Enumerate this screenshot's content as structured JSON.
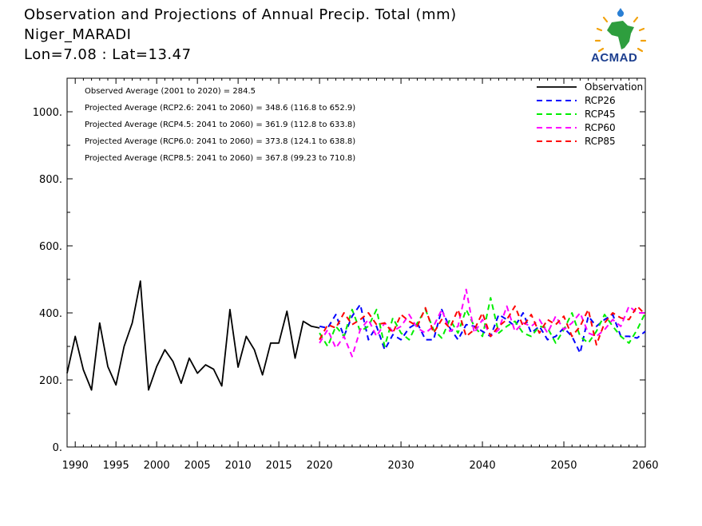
{
  "header": {
    "title_line1": "Observation and Projections of Annual Precip. Total (mm)",
    "title_line2": "Niger_MARADI",
    "title_line3": "Lon=7.08 : Lat=13.47"
  },
  "logo": {
    "text": "ACMAD"
  },
  "colors": {
    "observation": "#000000",
    "rcp26": "#0000ff",
    "rcp45": "#00ee00",
    "rcp60": "#ff00ff",
    "rcp85": "#ff0000"
  },
  "chart_data": {
    "type": "line",
    "xlim": [
      1989,
      2060
    ],
    "ylim": [
      0,
      1100
    ],
    "x_ticks": [
      1990,
      1995,
      2000,
      2005,
      2010,
      2015,
      2020,
      2030,
      2040,
      2050,
      2060
    ],
    "y_ticks": [
      0,
      200,
      400,
      600,
      800,
      1000
    ],
    "y_tick_labels": [
      "0.",
      "200.",
      "400.",
      "600.",
      "800.",
      "1000."
    ],
    "annotations": [
      "Observed Average (2001 to 2020) = 284.5",
      "Projected Average (RCP2.6: 2041 to 2060) = 348.6 (116.8 to 652.9)",
      "Projected Average (RCP4.5: 2041 to 2060) = 361.9 (112.8 to 633.8)",
      "Projected Average (RCP6.0: 2041 to 2060) = 373.8 (124.1 to 638.8)",
      "Projected Average (RCP8.5: 2041 to 2060) = 367.8 (99.23 to 710.8)"
    ],
    "legend_position": "top-right",
    "series": [
      {
        "name": "Observation",
        "key": "observation",
        "style": "solid",
        "x": [
          1989,
          1990,
          1991,
          1992,
          1993,
          1994,
          1995,
          1996,
          1997,
          1998,
          1999,
          2000,
          2001,
          2002,
          2003,
          2004,
          2005,
          2006,
          2007,
          2008,
          2009,
          2010,
          2011,
          2012,
          2013,
          2014,
          2015,
          2016,
          2017,
          2018,
          2019,
          2020
        ],
        "y": [
          220,
          330,
          230,
          170,
          370,
          240,
          185,
          300,
          370,
          495,
          170,
          240,
          290,
          255,
          190,
          265,
          220,
          245,
          232,
          182,
          410,
          238,
          330,
          290,
          215,
          310,
          310,
          405,
          265,
          375,
          360,
          355
        ]
      },
      {
        "name": "RCP26",
        "key": "rcp26",
        "style": "dashed",
        "x": [
          2020,
          2021,
          2022,
          2023,
          2024,
          2025,
          2026,
          2027,
          2028,
          2029,
          2030,
          2031,
          2032,
          2033,
          2034,
          2035,
          2036,
          2037,
          2038,
          2039,
          2040,
          2041,
          2042,
          2043,
          2044,
          2045,
          2046,
          2047,
          2048,
          2049,
          2050,
          2051,
          2052,
          2053,
          2054,
          2055,
          2056,
          2057,
          2058,
          2059,
          2060
        ],
        "y": [
          360,
          355,
          395,
          330,
          390,
          425,
          320,
          360,
          290,
          335,
          320,
          355,
          370,
          320,
          320,
          410,
          355,
          320,
          365,
          360,
          345,
          330,
          395,
          380,
          360,
          400,
          340,
          360,
          320,
          330,
          355,
          330,
          280,
          390,
          360,
          380,
          395,
          330,
          330,
          325,
          345
        ]
      },
      {
        "name": "RCP45",
        "key": "rcp45",
        "style": "dashed",
        "x": [
          2020,
          2021,
          2022,
          2023,
          2024,
          2025,
          2026,
          2027,
          2028,
          2029,
          2030,
          2031,
          2032,
          2033,
          2034,
          2035,
          2036,
          2037,
          2038,
          2039,
          2040,
          2041,
          2042,
          2043,
          2044,
          2045,
          2046,
          2047,
          2048,
          2049,
          2050,
          2051,
          2052,
          2053,
          2054,
          2055,
          2056,
          2057,
          2058,
          2059,
          2060
        ],
        "y": [
          340,
          300,
          360,
          330,
          410,
          345,
          360,
          410,
          300,
          385,
          340,
          320,
          370,
          410,
          350,
          325,
          380,
          340,
          410,
          360,
          330,
          445,
          340,
          360,
          375,
          340,
          330,
          360,
          355,
          310,
          350,
          400,
          330,
          310,
          345,
          395,
          360,
          330,
          310,
          350,
          400
        ]
      },
      {
        "name": "RCP60",
        "key": "rcp60",
        "style": "dashed",
        "x": [
          2020,
          2021,
          2022,
          2023,
          2024,
          2025,
          2026,
          2027,
          2028,
          2029,
          2030,
          2031,
          2032,
          2033,
          2034,
          2035,
          2036,
          2037,
          2038,
          2039,
          2040,
          2041,
          2042,
          2043,
          2044,
          2045,
          2046,
          2047,
          2048,
          2049,
          2050,
          2051,
          2052,
          2053,
          2054,
          2055,
          2056,
          2057,
          2058,
          2059,
          2060
        ],
        "y": [
          310,
          350,
          295,
          330,
          270,
          350,
          380,
          330,
          370,
          345,
          360,
          395,
          355,
          340,
          360,
          410,
          345,
          360,
          470,
          340,
          380,
          330,
          350,
          420,
          345,
          370,
          360,
          380,
          340,
          390,
          350,
          370,
          400,
          340,
          330,
          350,
          380,
          360,
          420,
          400,
          400
        ]
      },
      {
        "name": "RCP85",
        "key": "rcp85",
        "style": "dashed",
        "x": [
          2020,
          2021,
          2022,
          2023,
          2024,
          2025,
          2026,
          2027,
          2028,
          2029,
          2030,
          2031,
          2032,
          2033,
          2034,
          2035,
          2036,
          2037,
          2038,
          2039,
          2040,
          2041,
          2042,
          2043,
          2044,
          2045,
          2046,
          2047,
          2048,
          2049,
          2050,
          2051,
          2052,
          2053,
          2054,
          2055,
          2056,
          2057,
          2058,
          2059,
          2060
        ],
        "y": [
          320,
          365,
          355,
          400,
          365,
          380,
          400,
          365,
          370,
          340,
          395,
          375,
          360,
          415,
          340,
          380,
          355,
          410,
          330,
          350,
          400,
          330,
          360,
          380,
          420,
          360,
          395,
          340,
          380,
          365,
          390,
          330,
          360,
          410,
          305,
          370,
          400,
          385,
          380,
          420,
          395
        ]
      }
    ]
  }
}
